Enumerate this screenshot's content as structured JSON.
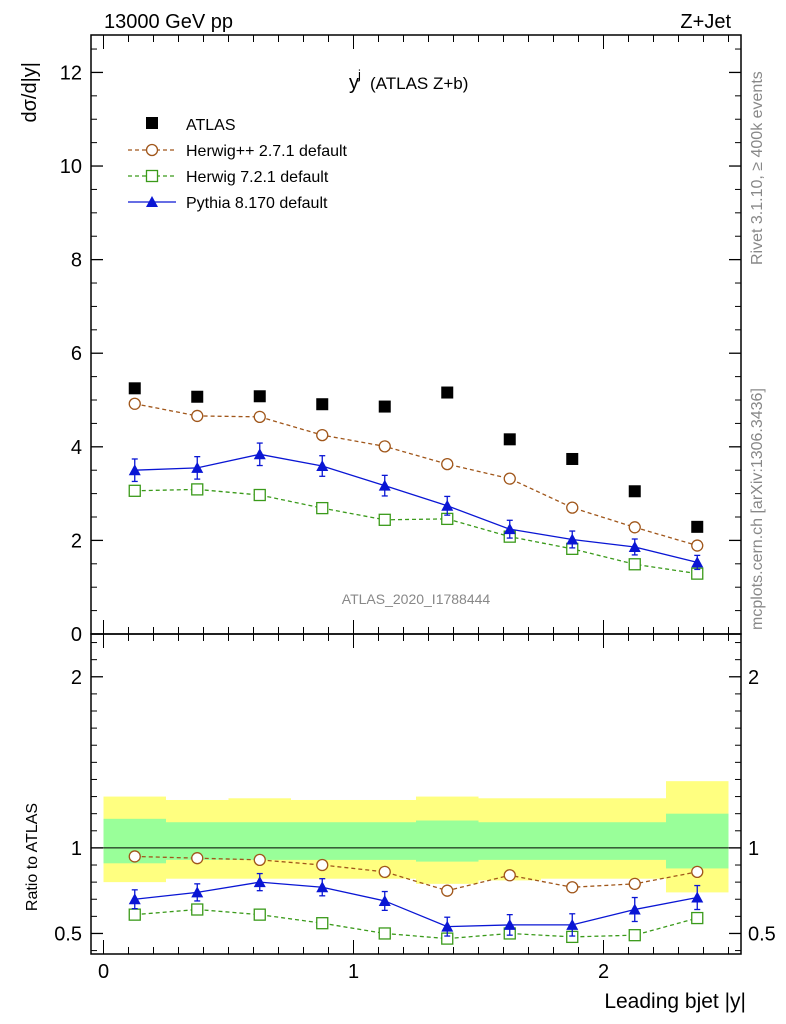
{
  "header": {
    "left": "13000 GeV pp",
    "right": "Z+Jet",
    "side_top": "Rivet 3.1.10, ≥ 400k events",
    "side_bottom": "mcplots.cern.ch [arXiv:1306.3436]"
  },
  "chart_data": [
    {
      "type": "line",
      "title": "y",
      "title_sup": "j",
      "title_suffix": "(ATLAS Z+b)",
      "ylabel": "dσ/d|y|",
      "xlim": [
        -0.05,
        2.55
      ],
      "ylim": [
        0,
        12.8
      ],
      "yticks": [
        {
          "v": 0,
          "label": "0"
        },
        {
          "v": 2,
          "label": "2"
        },
        {
          "v": 4,
          "label": "4"
        },
        {
          "v": 6,
          "label": "6"
        },
        {
          "v": 8,
          "label": "8"
        },
        {
          "v": 10,
          "label": "10"
        },
        {
          "v": 12,
          "label": "12"
        }
      ],
      "x": [
        0.125,
        0.375,
        0.625,
        0.875,
        1.125,
        1.375,
        1.625,
        1.875,
        2.125,
        2.375
      ],
      "series": [
        {
          "name": "ATLAS",
          "style": "data",
          "color": "#000000",
          "values": [
            5.25,
            5.07,
            5.08,
            4.91,
            4.86,
            5.16,
            4.16,
            3.74,
            3.05,
            2.29
          ]
        },
        {
          "name": "Herwig++ 2.7.1 default",
          "style": "open-circle",
          "color": "#a0561a",
          "values": [
            4.92,
            4.66,
            4.64,
            4.25,
            4.01,
            3.63,
            3.32,
            2.7,
            2.28,
            1.89
          ]
        },
        {
          "name": "Herwig 7.2.1 default",
          "style": "open-square",
          "color": "#3a9a1a",
          "values": [
            3.06,
            3.09,
            2.97,
            2.69,
            2.44,
            2.46,
            2.08,
            1.82,
            1.49,
            1.29
          ],
          "errors": [
            0.04,
            0.04,
            0.04,
            0.04,
            0.04,
            0.04,
            0.04,
            0.04,
            0.04,
            0.04
          ]
        },
        {
          "name": "Pythia 8.170 default",
          "style": "triangle",
          "color": "#0a16d4",
          "values": [
            3.5,
            3.55,
            3.84,
            3.59,
            3.17,
            2.74,
            2.24,
            2.02,
            1.86,
            1.53
          ],
          "errors": [
            0.24,
            0.24,
            0.24,
            0.22,
            0.22,
            0.2,
            0.19,
            0.18,
            0.17,
            0.15
          ]
        }
      ],
      "watermark": "ATLAS_2020_I1788444"
    },
    {
      "type": "line",
      "ylabel": "Ratio to ATLAS",
      "xlabel": "Leading bjet |y|",
      "xlim": [
        -0.05,
        2.55
      ],
      "ylim": [
        0.38,
        2.25
      ],
      "yticks": [
        {
          "v": 0.5,
          "label": "0.5"
        },
        {
          "v": 1,
          "label": "1"
        },
        {
          "v": 2,
          "label": "2"
        }
      ],
      "xticks": [
        {
          "v": 0,
          "label": "0"
        },
        {
          "v": 1,
          "label": "1"
        },
        {
          "v": 2,
          "label": "2"
        }
      ],
      "bins": [
        0,
        0.25,
        0.5,
        0.75,
        1.0,
        1.25,
        1.5,
        1.75,
        2.0,
        2.25,
        2.5
      ],
      "band_yellow": [
        [
          0.8,
          1.3
        ],
        [
          0.82,
          1.28
        ],
        [
          0.82,
          1.29
        ],
        [
          0.82,
          1.28
        ],
        [
          0.82,
          1.28
        ],
        [
          0.79,
          1.3
        ],
        [
          0.81,
          1.29
        ],
        [
          0.82,
          1.29
        ],
        [
          0.82,
          1.29
        ],
        [
          0.74,
          1.39
        ]
      ],
      "band_green": [
        [
          0.91,
          1.17
        ],
        [
          0.93,
          1.15
        ],
        [
          0.93,
          1.15
        ],
        [
          0.93,
          1.15
        ],
        [
          0.93,
          1.15
        ],
        [
          0.92,
          1.16
        ],
        [
          0.93,
          1.15
        ],
        [
          0.93,
          1.15
        ],
        [
          0.93,
          1.15
        ],
        [
          0.88,
          1.2
        ]
      ],
      "x": [
        0.125,
        0.375,
        0.625,
        0.875,
        1.125,
        1.375,
        1.625,
        1.875,
        2.125,
        2.375
      ],
      "series": [
        {
          "name": "Herwig++ 2.7.1 default",
          "style": "open-circle",
          "color": "#a0561a",
          "values": [
            0.95,
            0.94,
            0.93,
            0.9,
            0.86,
            0.75,
            0.84,
            0.77,
            0.79,
            0.86
          ]
        },
        {
          "name": "Herwig 7.2.1 default",
          "style": "open-square",
          "color": "#3a9a1a",
          "values": [
            0.61,
            0.64,
            0.61,
            0.56,
            0.5,
            0.47,
            0.5,
            0.48,
            0.49,
            0.59
          ],
          "errors": [
            0.02,
            0.02,
            0.02,
            0.02,
            0.02,
            0.02,
            0.02,
            0.02,
            0.02,
            0.02
          ]
        },
        {
          "name": "Pythia 8.170 default",
          "style": "triangle",
          "color": "#0a16d4",
          "values": [
            0.7,
            0.74,
            0.8,
            0.77,
            0.69,
            0.54,
            0.55,
            0.55,
            0.64,
            0.71
          ],
          "errors": [
            0.055,
            0.05,
            0.05,
            0.05,
            0.055,
            0.055,
            0.06,
            0.065,
            0.07,
            0.07
          ]
        }
      ]
    }
  ]
}
